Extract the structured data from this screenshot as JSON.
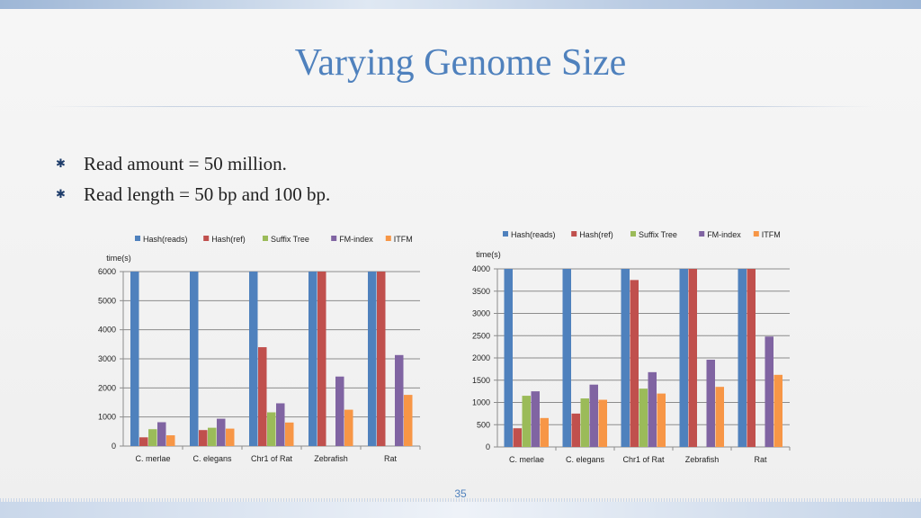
{
  "title": "Varying Genome Size",
  "bullets": [
    {
      "icon": "asterisk-bullet-icon",
      "text": "Read amount = 50 million."
    },
    {
      "icon": "asterisk-bullet-icon",
      "text": "Read length = 50 bp and 100 bp."
    }
  ],
  "page_number": "35",
  "colors": {
    "title": "#4f81bd",
    "series": [
      "#4f81bd",
      "#c0504d",
      "#9bbb59",
      "#8064a2",
      "#f79646"
    ]
  },
  "chart_data": [
    {
      "type": "bar",
      "title": "",
      "ylabel": "time(s)",
      "xlabel": "",
      "categories": [
        "C. merlae",
        "C. elegans",
        "Chr1 of Rat",
        "Zebrafish",
        "Rat"
      ],
      "ylim": [
        0,
        6000
      ],
      "yticks": [
        "0",
        "1000",
        "2000",
        "3000",
        "4000",
        "5000",
        "6000"
      ],
      "grid": true,
      "legend_position": "top",
      "series": [
        {
          "name": "Hash(reads)",
          "values": [
            6000,
            6000,
            6000,
            6000,
            6000
          ]
        },
        {
          "name": "Hash(ref)",
          "values": [
            300,
            550,
            3400,
            6000,
            6000
          ]
        },
        {
          "name": "Suffix Tree",
          "values": [
            580,
            630,
            1160,
            null,
            null
          ]
        },
        {
          "name": "FM-index",
          "values": [
            820,
            940,
            1470,
            2390,
            3130
          ]
        },
        {
          "name": "ITFM",
          "values": [
            370,
            600,
            810,
            1250,
            1760
          ]
        }
      ]
    },
    {
      "type": "bar",
      "title": "",
      "ylabel": "time(s)",
      "xlabel": "",
      "categories": [
        "C. merlae",
        "C. elegans",
        "Chr1 of Rat",
        "Zebrafish",
        "Rat"
      ],
      "ylim": [
        0,
        4000
      ],
      "yticks": [
        "0",
        "500",
        "1000",
        "1500",
        "2000",
        "2500",
        "3000",
        "3500",
        "4000"
      ],
      "grid": true,
      "legend_position": "top",
      "series": [
        {
          "name": "Hash(reads)",
          "values": [
            4000,
            4000,
            4000,
            4000,
            4000
          ]
        },
        {
          "name": "Hash(ref)",
          "values": [
            420,
            750,
            3750,
            4000,
            4000
          ]
        },
        {
          "name": "Suffix Tree",
          "values": [
            1150,
            1090,
            1310,
            null,
            null
          ]
        },
        {
          "name": "FM-index",
          "values": [
            1250,
            1400,
            1680,
            1960,
            2480
          ]
        },
        {
          "name": "ITFM",
          "values": [
            650,
            1060,
            1200,
            1350,
            1620
          ]
        }
      ]
    }
  ]
}
